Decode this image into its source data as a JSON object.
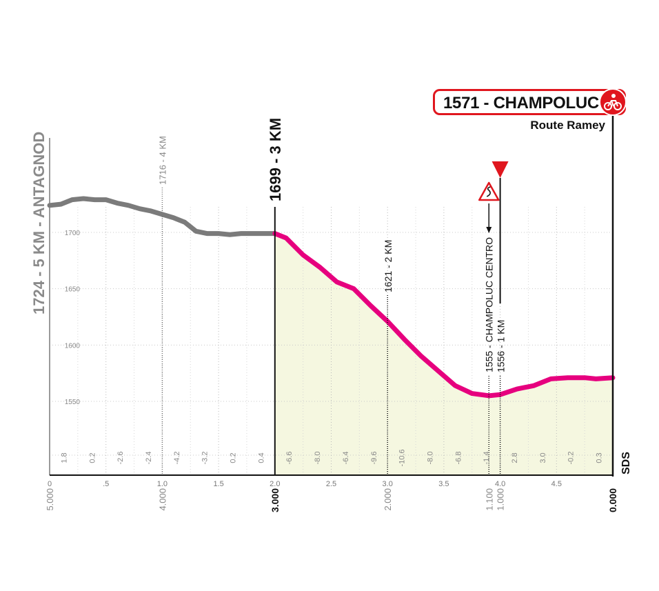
{
  "chart_data": {
    "type": "area",
    "title": "",
    "xlabel": "",
    "ylabel": "",
    "xlim": [
      0,
      5
    ],
    "ylim": [
      1480,
      1760
    ],
    "x_ticks": [
      {
        "v": 0,
        "label": "0"
      },
      {
        "v": 0.5,
        "label": ".5"
      },
      {
        "v": 1,
        "label": "1.0"
      },
      {
        "v": 1.5,
        "label": "1.5"
      },
      {
        "v": 2,
        "label": "2.0"
      },
      {
        "v": 2.5,
        "label": "2.5"
      },
      {
        "v": 3,
        "label": "3.0"
      },
      {
        "v": 3.5,
        "label": "3.5"
      },
      {
        "v": 4,
        "label": "4.0"
      },
      {
        "v": 4.5,
        "label": "4.5"
      }
    ],
    "y_ticks": [
      {
        "v": 1700,
        "label": "1700"
      },
      {
        "v": 1650,
        "label": "1650"
      },
      {
        "v": 1600,
        "label": "1600"
      },
      {
        "v": 1550,
        "label": "1550"
      }
    ],
    "distance_to_go": [
      {
        "v": 0,
        "label": "5.000",
        "bold": false
      },
      {
        "v": 1,
        "label": "4.000",
        "bold": false
      },
      {
        "v": 2,
        "label": "3.000",
        "bold": true
      },
      {
        "v": 3,
        "label": "2.000",
        "bold": false
      },
      {
        "v": 3.9,
        "label": "1.100",
        "bold": false
      },
      {
        "v": 4,
        "label": "1.000",
        "bold": false
      },
      {
        "v": 5,
        "label": "0.000",
        "bold": true
      }
    ],
    "gradients": [
      {
        "v": 0.125,
        "label": "1.8"
      },
      {
        "v": 0.375,
        "label": "0.2"
      },
      {
        "v": 0.625,
        "label": "-2.6"
      },
      {
        "v": 0.875,
        "label": "-2.4"
      },
      {
        "v": 1.125,
        "label": "-4.2"
      },
      {
        "v": 1.375,
        "label": "-3.2"
      },
      {
        "v": 1.625,
        "label": "0.2"
      },
      {
        "v": 1.875,
        "label": "0.4"
      },
      {
        "v": 2.125,
        "label": "-6.6"
      },
      {
        "v": 2.375,
        "label": "-8.0"
      },
      {
        "v": 2.625,
        "label": "-6.4"
      },
      {
        "v": 2.875,
        "label": "-9.6"
      },
      {
        "v": 3.125,
        "label": "-10.6"
      },
      {
        "v": 3.375,
        "label": "-8.0"
      },
      {
        "v": 3.625,
        "label": "-6.8"
      },
      {
        "v": 3.875,
        "label": "-1.4"
      },
      {
        "v": 4.125,
        "label": "2.8"
      },
      {
        "v": 4.375,
        "label": "3.0"
      },
      {
        "v": 4.625,
        "label": "-0.2"
      },
      {
        "v": 4.875,
        "label": "0.3"
      }
    ],
    "series": [
      {
        "color": "#7b7b7b",
        "points": [
          [
            0,
            1724
          ],
          [
            0.1,
            1725
          ],
          [
            0.2,
            1729
          ],
          [
            0.3,
            1730
          ],
          [
            0.4,
            1729
          ],
          [
            0.5,
            1729
          ],
          [
            0.6,
            1726
          ],
          [
            0.7,
            1724
          ],
          [
            0.8,
            1721
          ],
          [
            0.9,
            1719
          ],
          [
            1.0,
            1716
          ],
          [
            1.1,
            1713
          ],
          [
            1.2,
            1709
          ],
          [
            1.3,
            1701
          ],
          [
            1.4,
            1699
          ],
          [
            1.5,
            1699
          ],
          [
            1.6,
            1698
          ],
          [
            1.7,
            1699
          ],
          [
            1.8,
            1699
          ],
          [
            1.9,
            1699
          ],
          [
            2.0,
            1699
          ]
        ]
      },
      {
        "color": "#e6007e",
        "fill": "#f5f7e0",
        "points": [
          [
            2.0,
            1699
          ],
          [
            2.1,
            1695
          ],
          [
            2.25,
            1680
          ],
          [
            2.4,
            1669
          ],
          [
            2.55,
            1656
          ],
          [
            2.7,
            1650
          ],
          [
            2.85,
            1635
          ],
          [
            3.0,
            1621
          ],
          [
            3.15,
            1605
          ],
          [
            3.3,
            1590
          ],
          [
            3.45,
            1577
          ],
          [
            3.6,
            1564
          ],
          [
            3.75,
            1557
          ],
          [
            3.9,
            1555
          ],
          [
            4.0,
            1556
          ],
          [
            4.15,
            1561
          ],
          [
            4.3,
            1564
          ],
          [
            4.45,
            1570
          ],
          [
            4.6,
            1571
          ],
          [
            4.75,
            1571
          ],
          [
            4.85,
            1570
          ],
          [
            5.0,
            1571
          ]
        ]
      }
    ],
    "markers": [
      {
        "v": 1,
        "elev": 1716,
        "label": "1716 - 4 KM",
        "kind": "km"
      },
      {
        "v": 2,
        "elev": 1699,
        "label": "1699 - 3 KM",
        "kind": "major"
      },
      {
        "v": 3,
        "elev": 1621,
        "label": "1621 - 2 KM",
        "kind": "km"
      },
      {
        "v": 3.9,
        "elev": 1555,
        "label": "1555 - CHAMPOLUC CENTRO",
        "kind": "km"
      },
      {
        "v": 4,
        "elev": 1556,
        "label": "1556 - 1 KM",
        "kind": "km"
      }
    ],
    "start_label": "1724 - 5 KM - ANTAGNOD",
    "finish": {
      "label": "1571 - CHAMPOLUC",
      "sub": "Route Ramey"
    },
    "logo": "SDS"
  },
  "colors": {
    "accent": "#e6007e",
    "finish_red": "#e0161e",
    "past": "#7b7b7b",
    "fill": "#f5f7e0"
  },
  "icons": {
    "finish": "cyclist-icon",
    "red_flag": "red-triangle-icon",
    "warning": "curve-warning-icon"
  }
}
